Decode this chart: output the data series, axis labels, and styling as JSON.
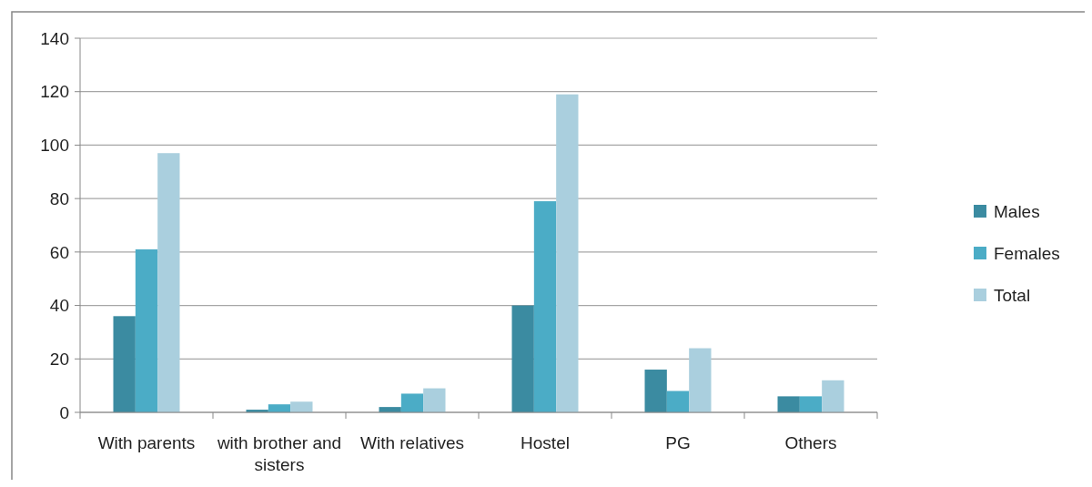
{
  "chart_data": {
    "type": "bar",
    "categories": [
      "With parents",
      "with brother and sisters",
      "With relatives",
      "Hostel",
      "PG",
      "Others"
    ],
    "series": [
      {
        "name": "Males",
        "color": "#3b8ba1",
        "values": [
          36,
          1,
          2,
          40,
          16,
          6
        ]
      },
      {
        "name": "Females",
        "color": "#4bacc6",
        "values": [
          61,
          3,
          7,
          79,
          8,
          6
        ]
      },
      {
        "name": "Total",
        "color": "#aacfde",
        "values": [
          97,
          4,
          9,
          119,
          24,
          12
        ]
      }
    ],
    "ylim": [
      0,
      140
    ],
    "yticks": [
      0,
      20,
      40,
      60,
      80,
      100,
      120,
      140
    ],
    "grid": "y",
    "legend": "right"
  }
}
